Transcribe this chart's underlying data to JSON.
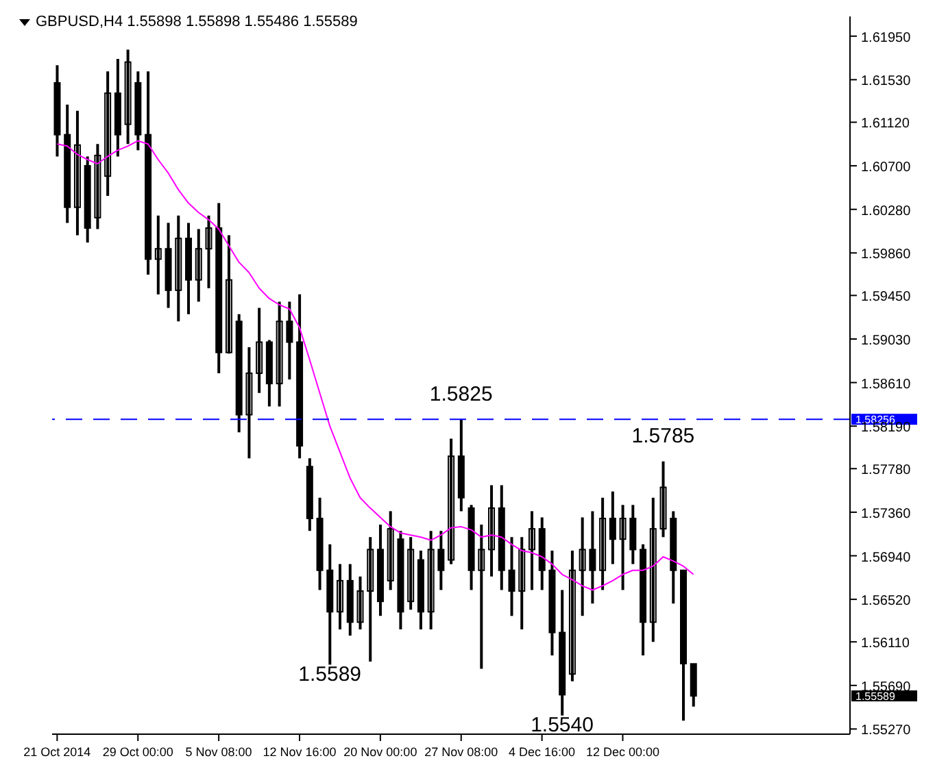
{
  "chart_data": {
    "type": "candlestick",
    "title": "GBPUSD,H4  1.55898 1.55898 1.55486 1.55589",
    "categories": [
      "21 Oct 2014",
      null,
      null,
      null,
      null,
      null,
      null,
      null,
      "29 Oct 00:00",
      null,
      null,
      null,
      null,
      null,
      null,
      null,
      "5 Nov 08:00",
      null,
      null,
      null,
      null,
      null,
      null,
      null,
      "12 Nov 16:00",
      null,
      null,
      null,
      null,
      null,
      null,
      null,
      "20 Nov 00:00",
      null,
      null,
      null,
      null,
      null,
      null,
      null,
      "27 Nov 08:00",
      null,
      null,
      null,
      null,
      null,
      null,
      null,
      "4 Dec 16:00",
      null,
      null,
      null,
      null,
      null,
      null,
      null,
      "12 Dec 00:00",
      null,
      null,
      null,
      null,
      null,
      null,
      null,
      null,
      null,
      null,
      null,
      null,
      null,
      null,
      null,
      null,
      null,
      null,
      null,
      null,
      null,
      null
    ],
    "ohlc": [
      [
        1.615,
        1.6167,
        1.6079,
        1.61
      ],
      [
        1.61,
        1.6129,
        1.6015,
        1.603
      ],
      [
        1.603,
        1.6123,
        1.6003,
        1.609
      ],
      [
        1.607,
        1.6079,
        1.5996,
        1.601
      ],
      [
        1.602,
        1.6091,
        1.6009,
        1.608
      ],
      [
        1.606,
        1.6161,
        1.6041,
        1.614
      ],
      [
        1.614,
        1.6173,
        1.6079,
        1.61
      ],
      [
        1.611,
        1.6182,
        1.6091,
        1.617
      ],
      [
        1.615,
        1.6161,
        1.6085,
        1.61
      ],
      [
        1.61,
        1.6161,
        1.5965,
        1.598
      ],
      [
        1.598,
        1.6022,
        1.5946,
        1.599
      ],
      [
        1.599,
        1.6015,
        1.5933,
        1.595
      ],
      [
        1.595,
        1.6022,
        1.592,
        1.6
      ],
      [
        1.6,
        1.6015,
        1.5927,
        1.596
      ],
      [
        1.596,
        1.6009,
        1.5939,
        1.599
      ],
      [
        1.599,
        1.6022,
        1.5952,
        1.601
      ],
      [
        1.601,
        1.6034,
        1.587,
        1.589
      ],
      [
        1.589,
        1.6003,
        1.5889,
        1.596
      ],
      [
        1.592,
        1.5927,
        1.5813,
        1.583
      ],
      [
        1.583,
        1.5895,
        1.5788,
        1.587
      ],
      [
        1.587,
        1.5933,
        1.5851,
        1.59
      ],
      [
        1.59,
        1.5902,
        1.5838,
        1.586
      ],
      [
        1.586,
        1.5939,
        1.5838,
        1.592
      ],
      [
        1.592,
        1.5939,
        1.5864,
        1.59
      ],
      [
        1.59,
        1.5946,
        1.5788,
        1.58
      ],
      [
        1.578,
        1.5788,
        1.5718,
        1.573
      ],
      [
        1.573,
        1.575,
        1.5661,
        1.568
      ],
      [
        1.568,
        1.5705,
        1.5589,
        1.564
      ],
      [
        1.564,
        1.5686,
        1.5623,
        1.567
      ],
      [
        1.567,
        1.5686,
        1.5617,
        1.563
      ],
      [
        1.563,
        1.5674,
        1.5623,
        1.566
      ],
      [
        1.566,
        1.5712,
        1.5592,
        1.57
      ],
      [
        1.57,
        1.5724,
        1.5636,
        1.565
      ],
      [
        1.567,
        1.5737,
        1.5661,
        1.572
      ],
      [
        1.571,
        1.5718,
        1.5623,
        1.564
      ],
      [
        1.565,
        1.5712,
        1.5642,
        1.57
      ],
      [
        1.569,
        1.5699,
        1.5623,
        1.564
      ],
      [
        1.564,
        1.5718,
        1.5623,
        1.57
      ],
      [
        1.57,
        1.5718,
        1.5661,
        1.568
      ],
      [
        1.569,
        1.5807,
        1.5686,
        1.579
      ],
      [
        1.579,
        1.5825,
        1.5737,
        1.575
      ],
      [
        1.574,
        1.5743,
        1.5661,
        1.568
      ],
      [
        1.568,
        1.5724,
        1.5585,
        1.57
      ],
      [
        1.57,
        1.5762,
        1.5674,
        1.574
      ],
      [
        1.574,
        1.5762,
        1.5661,
        1.568
      ],
      [
        1.568,
        1.5712,
        1.5636,
        1.566
      ],
      [
        1.566,
        1.5712,
        1.5623,
        1.57
      ],
      [
        1.57,
        1.5737,
        1.5661,
        1.572
      ],
      [
        1.572,
        1.5731,
        1.5661,
        1.568
      ],
      [
        1.568,
        1.5699,
        1.5598,
        1.562
      ],
      [
        1.562,
        1.5661,
        1.554,
        1.556
      ],
      [
        1.558,
        1.5699,
        1.5573,
        1.568
      ],
      [
        1.568,
        1.5731,
        1.5636,
        1.57
      ],
      [
        1.57,
        1.5737,
        1.5648,
        1.568
      ],
      [
        1.568,
        1.575,
        1.5661,
        1.573
      ],
      [
        1.573,
        1.5756,
        1.5686,
        1.571
      ],
      [
        1.571,
        1.5743,
        1.5661,
        1.573
      ],
      [
        1.573,
        1.5743,
        1.5686,
        1.57
      ],
      [
        1.57,
        1.5705,
        1.5598,
        1.563
      ],
      [
        1.563,
        1.575,
        1.5611,
        1.572
      ],
      [
        1.572,
        1.5785,
        1.5712,
        1.576
      ],
      [
        1.573,
        1.5737,
        1.5648,
        1.568
      ],
      [
        1.568,
        1.568,
        1.5535,
        1.559
      ],
      [
        1.55898,
        1.55898,
        1.55486,
        1.55589
      ],
      null,
      null,
      null,
      null,
      null,
      null,
      null,
      null,
      null,
      null,
      null,
      null,
      null,
      null,
      null
    ],
    "color": "#000000",
    "series": [
      {
        "type": "line",
        "color": "#ff00ff",
        "values": [
          1.6091,
          1.6089,
          1.6081,
          1.6076,
          1.6072,
          1.6079,
          1.6085,
          1.6089,
          1.6094,
          1.6091,
          1.6076,
          1.6063,
          1.6047,
          1.6034,
          1.6025,
          1.6018,
          1.6009,
          1.5993,
          1.5977,
          1.5967,
          1.5952,
          1.5942,
          1.5936,
          1.5932,
          1.5914,
          1.5883,
          1.5851,
          1.5819,
          1.5794,
          1.5769,
          1.575,
          1.574,
          1.5731,
          1.5722,
          1.5716,
          1.5714,
          1.5712,
          1.5709,
          1.5714,
          1.5721,
          1.5722,
          1.5719,
          1.5712,
          1.5714,
          1.5712,
          1.5705,
          1.5699,
          1.5697,
          1.5693,
          1.5686,
          1.5676,
          1.5671,
          1.5665,
          1.5661,
          1.5665,
          1.567,
          1.5676,
          1.568,
          1.568,
          1.5684,
          1.5693,
          1.5689,
          1.5684,
          1.5676,
          null,
          null,
          null,
          null,
          null,
          null,
          null,
          null,
          null,
          null,
          null,
          null,
          null,
          null,
          null
        ]
      }
    ],
    "ylim": [
      1.5522,
      1.6214
    ],
    "yticks": [
      {
        "value": 1.6195,
        "label": "1.61950"
      },
      {
        "value": 1.6153,
        "label": "1.61530"
      },
      {
        "value": 1.6112,
        "label": "1.61120"
      },
      {
        "value": 1.607,
        "label": "1.60700"
      },
      {
        "value": 1.6028,
        "label": "1.60280"
      },
      {
        "value": 1.5986,
        "label": "1.59860"
      },
      {
        "value": 1.5945,
        "label": "1.59450"
      },
      {
        "value": 1.5903,
        "label": "1.59030"
      },
      {
        "value": 1.5861,
        "label": "1.58610"
      },
      {
        "value": 1.5819,
        "label": "1.58190"
      },
      {
        "value": 1.5778,
        "label": "1.57780"
      },
      {
        "value": 1.5736,
        "label": "1.57360"
      },
      {
        "value": 1.5694,
        "label": "1.56940"
      },
      {
        "value": 1.5652,
        "label": "1.56520"
      },
      {
        "value": 1.5611,
        "label": "1.56110"
      },
      {
        "value": 1.5569,
        "label": "1.55690"
      },
      {
        "value": 1.5527,
        "label": "1.55270"
      }
    ],
    "ref_lines": [
      {
        "axis": "y",
        "value": 1.58256,
        "label": "1.58256",
        "color": "#0000ff",
        "line_style": "dashed"
      }
    ],
    "annotations": [
      {
        "text": "1.5825",
        "y": 1.5825
      },
      {
        "text": "1.5589",
        "y": 1.5589
      },
      {
        "text": "1.5540",
        "y": 1.554
      },
      {
        "text": "1.5785",
        "y": 1.5785
      },
      "1.55589"
    ],
    "grid": false,
    "legend": false,
    "marker": "none",
    "line_style": "solid"
  }
}
